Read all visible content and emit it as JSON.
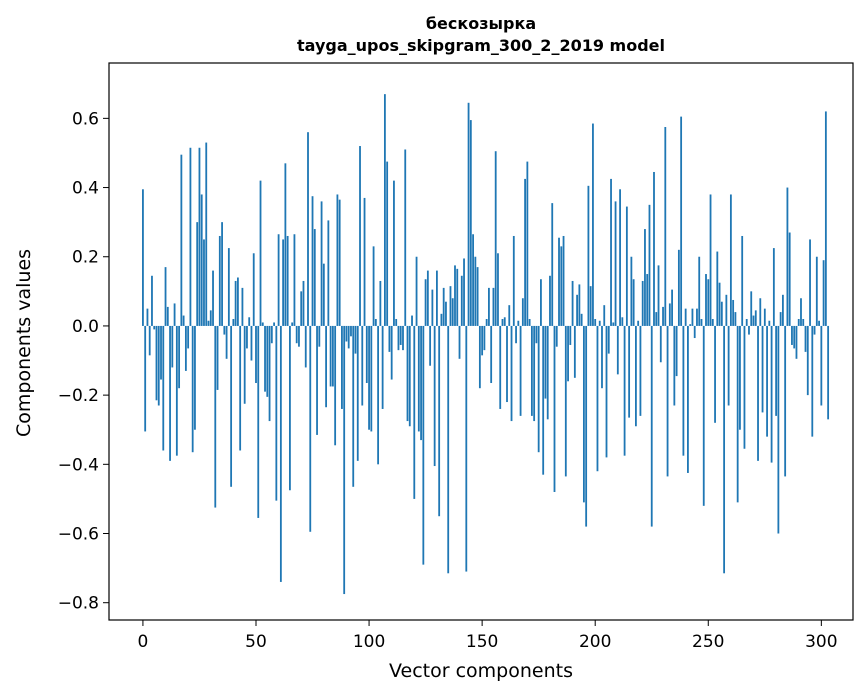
{
  "chart_data": {
    "type": "bar",
    "title_line1": "бескозырка",
    "title_line2": "tayga_upos_skipgram_300_2_2019 model",
    "xlabel": "Vector components",
    "ylabel": "Components values",
    "xlim": [
      -15,
      314
    ],
    "ylim": [
      -0.85,
      0.76
    ],
    "xticks": [
      0,
      50,
      100,
      150,
      200,
      250,
      300
    ],
    "xtick_labels": [
      "0",
      "50",
      "100",
      "150",
      "200",
      "250",
      "300"
    ],
    "yticks": [
      -0.8,
      -0.6,
      -0.4,
      -0.2,
      0.0,
      0.2,
      0.4,
      0.6
    ],
    "ytick_labels": [
      "−0.8",
      "−0.6",
      "−0.4",
      "−0.2",
      "0.0",
      "0.2",
      "0.4",
      "0.6"
    ],
    "bar_color": "#1f77b4",
    "bar_width": 0.8,
    "values": [
      0.395,
      -0.305,
      0.05,
      -0.085,
      0.145,
      -0.01,
      -0.215,
      -0.23,
      -0.155,
      -0.36,
      0.17,
      0.055,
      -0.39,
      -0.12,
      0.065,
      -0.375,
      -0.18,
      0.495,
      0.03,
      -0.13,
      -0.065,
      0.515,
      -0.365,
      -0.3,
      0.3,
      0.515,
      0.38,
      0.25,
      0.53,
      0.015,
      0.045,
      0.16,
      -0.525,
      -0.185,
      0.26,
      0.3,
      -0.025,
      -0.095,
      0.225,
      -0.465,
      0.02,
      0.13,
      0.14,
      -0.36,
      0.11,
      -0.225,
      -0.065,
      0.025,
      -0.1,
      0.21,
      -0.165,
      -0.555,
      0.42,
      0.01,
      -0.19,
      -0.205,
      -0.275,
      -0.05,
      0.01,
      -0.505,
      0.265,
      -0.74,
      0.25,
      0.47,
      0.26,
      -0.475,
      0.01,
      0.265,
      -0.05,
      -0.06,
      0.1,
      0.13,
      -0.12,
      0.56,
      -0.595,
      0.375,
      0.28,
      -0.315,
      -0.06,
      0.36,
      0.18,
      -0.235,
      0.305,
      -0.175,
      -0.175,
      -0.345,
      0.38,
      0.365,
      -0.24,
      -0.775,
      -0.045,
      -0.065,
      -0.03,
      -0.465,
      -0.08,
      -0.39,
      0.52,
      -0.23,
      0.37,
      -0.165,
      -0.3,
      -0.305,
      0.23,
      0.02,
      -0.4,
      0.13,
      -0.24,
      0.67,
      0.475,
      -0.075,
      -0.155,
      0.42,
      0.02,
      -0.07,
      -0.055,
      -0.07,
      0.51,
      -0.275,
      -0.29,
      0.03,
      -0.5,
      0.2,
      -0.305,
      -0.33,
      -0.69,
      0.135,
      0.16,
      -0.115,
      0.105,
      -0.405,
      0.16,
      -0.55,
      0.035,
      0.11,
      0.07,
      -0.715,
      0.115,
      0.08,
      0.175,
      0.165,
      -0.095,
      0.145,
      0.195,
      -0.71,
      0.645,
      0.595,
      0.265,
      0.2,
      0.17,
      -0.18,
      -0.085,
      -0.07,
      0.02,
      0.11,
      -0.165,
      0.11,
      0.505,
      0.21,
      -0.24,
      0.02,
      0.025,
      -0.22,
      0.06,
      -0.275,
      0.26,
      -0.05,
      0.015,
      -0.26,
      0.08,
      0.425,
      0.475,
      0.02,
      -0.26,
      -0.275,
      -0.05,
      -0.365,
      0.135,
      -0.43,
      -0.21,
      -0.27,
      0.145,
      0.355,
      -0.48,
      -0.06,
      0.255,
      0.23,
      0.26,
      -0.435,
      -0.16,
      -0.055,
      0.13,
      -0.15,
      0.09,
      0.12,
      0.035,
      -0.51,
      -0.58,
      0.405,
      0.115,
      0.585,
      0.02,
      -0.42,
      0.015,
      -0.18,
      0.06,
      -0.38,
      -0.08,
      0.425,
      0.01,
      0.36,
      -0.14,
      0.395,
      0.025,
      -0.375,
      0.345,
      -0.265,
      0.2,
      0.135,
      -0.29,
      0.015,
      -0.26,
      0.13,
      0.28,
      0.15,
      0.35,
      -0.58,
      0.445,
      0.04,
      0.175,
      -0.105,
      0.055,
      0.575,
      -0.435,
      0.065,
      0.105,
      -0.23,
      -0.145,
      0.22,
      0.605,
      -0.375,
      0.05,
      -0.425,
      0.005,
      0.05,
      -0.035,
      0.05,
      0.2,
      0.02,
      -0.52,
      0.15,
      0.135,
      0.38,
      0.02,
      -0.28,
      0.215,
      0.125,
      0.07,
      -0.715,
      0.09,
      -0.23,
      0.38,
      0.075,
      0.04,
      -0.51,
      -0.3,
      0.26,
      -0.355,
      0.02,
      -0.025,
      0.1,
      0.03,
      0.045,
      -0.39,
      0.08,
      -0.25,
      0.05,
      -0.32,
      0.015,
      -0.395,
      0.225,
      -0.26,
      -0.6,
      0.04,
      0.09,
      -0.435,
      0.4,
      0.27,
      -0.055,
      -0.065,
      -0.095,
      0.02,
      0.08,
      0.02,
      -0.075,
      -0.2,
      0.25,
      -0.32,
      -0.025,
      0.2,
      0.015,
      -0.23,
      0.19,
      0.62,
      -0.27
    ]
  }
}
